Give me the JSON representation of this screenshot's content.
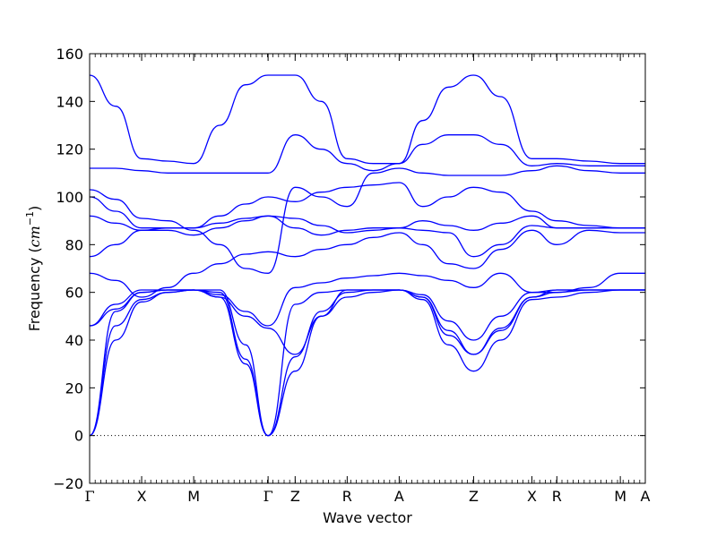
{
  "chart_data": {
    "type": "line",
    "title": "",
    "xlabel": "Wave vector",
    "ylabel": "Frequency",
    "ylabel_unit": "cm",
    "ylabel_exp": "−1",
    "ylim": [
      -20,
      160
    ],
    "yticks": [
      -20,
      0,
      20,
      40,
      60,
      80,
      100,
      120,
      140,
      160
    ],
    "xlim": [
      0,
      10.68
    ],
    "grid": false,
    "zero_line": true,
    "high_symmetry_points": [
      {
        "label": "Γ",
        "x": 0.0
      },
      {
        "label": "X",
        "x": 1.0
      },
      {
        "label": "M",
        "x": 2.0
      },
      {
        "label": "Γ",
        "x": 3.43
      },
      {
        "label": "Z",
        "x": 3.95
      },
      {
        "label": "R",
        "x": 4.95
      },
      {
        "label": "A",
        "x": 5.95
      },
      {
        "label": "Z",
        "x": 7.38
      },
      {
        "label": "X",
        "x": 8.5
      },
      {
        "label": "R",
        "x": 8.98
      },
      {
        "label": "M",
        "x": 10.2
      },
      {
        "label": "A",
        "x": 10.68
      }
    ],
    "series": [
      {
        "x": [
          0,
          0.5,
          1.0,
          1.5,
          2.0,
          2.5,
          3.0,
          3.43,
          3.95,
          4.45,
          4.95,
          5.45,
          5.95,
          6.4,
          6.9,
          7.38,
          7.9,
          8.5,
          8.98,
          9.6,
          10.2,
          10.68
        ],
        "y": [
          0,
          40,
          56,
          60,
          61,
          58,
          30,
          0,
          27,
          50,
          58,
          60,
          61,
          57,
          38,
          27,
          40,
          57,
          58,
          60,
          61,
          61
        ]
      },
      {
        "x": [
          0,
          0.5,
          1.0,
          1.5,
          2.0,
          2.5,
          3.0,
          3.43,
          3.95,
          4.45,
          4.95,
          5.45,
          5.95,
          6.4,
          6.9,
          7.38,
          7.9,
          8.5,
          8.98,
          9.6,
          10.2,
          10.68
        ],
        "y": [
          0,
          46,
          57,
          60,
          61,
          60,
          32,
          0,
          33,
          52,
          60,
          61,
          61,
          58,
          42,
          34,
          45,
          58,
          60,
          61,
          61,
          61
        ]
      },
      {
        "x": [
          0,
          0.5,
          1.0,
          1.5,
          2.0,
          2.5,
          3.0,
          3.43,
          3.95,
          4.45,
          4.95,
          5.45,
          5.95,
          6.4,
          6.9,
          7.38,
          7.9,
          8.5,
          8.98,
          9.6,
          10.2,
          10.68
        ],
        "y": [
          0,
          52,
          60,
          61,
          61,
          61,
          38,
          0,
          55,
          60,
          61,
          61,
          61,
          59,
          48,
          40,
          50,
          60,
          61,
          61,
          61,
          61
        ]
      },
      {
        "x": [
          0,
          0.5,
          1.0,
          1.5,
          2.0,
          2.5,
          3.0,
          3.43,
          3.95,
          4.45,
          4.95,
          5.45,
          5.95,
          6.4,
          6.9,
          7.38,
          7.9,
          8.5,
          8.98,
          9.6,
          10.2,
          10.68
        ],
        "y": [
          46,
          53,
          60,
          61,
          61,
          58,
          50,
          45,
          34,
          50,
          61,
          61,
          61,
          58,
          44,
          34,
          44,
          58,
          61,
          61,
          61,
          61
        ]
      },
      {
        "x": [
          0,
          0.5,
          1.0,
          1.5,
          2.0,
          2.5,
          3.0,
          3.43,
          3.95,
          4.45,
          4.95,
          5.45,
          5.95,
          6.4,
          6.9,
          7.38,
          7.9,
          8.5,
          8.98,
          9.6,
          10.2,
          10.68
        ],
        "y": [
          46,
          55,
          61,
          61,
          61,
          59,
          52,
          46,
          62,
          64,
          66,
          67,
          68,
          67,
          65,
          62,
          68,
          60,
          60,
          62,
          68,
          68
        ]
      },
      {
        "x": [
          0,
          0.5,
          1.0,
          1.5,
          2.0,
          2.5,
          3.0,
          3.43,
          3.95,
          4.45,
          4.95,
          5.45,
          5.95,
          6.4,
          6.9,
          7.38,
          7.9,
          8.5,
          8.98,
          9.6,
          10.2,
          10.68
        ],
        "y": [
          68,
          65,
          58,
          62,
          68,
          72,
          76,
          77,
          75,
          78,
          80,
          83,
          85,
          80,
          72,
          70,
          78,
          86,
          80,
          86,
          85,
          85
        ]
      },
      {
        "x": [
          0,
          0.5,
          1.0,
          1.5,
          2.0,
          2.5,
          3.0,
          3.43,
          3.95,
          4.45,
          4.95,
          5.45,
          5.95,
          6.4,
          6.9,
          7.38,
          7.9,
          8.5,
          8.98,
          9.6,
          10.2,
          10.68
        ],
        "y": [
          75,
          80,
          86,
          86,
          84,
          87,
          90,
          92,
          91,
          88,
          85,
          86,
          87,
          86,
          85,
          75,
          80,
          88,
          87,
          87,
          87,
          87
        ]
      },
      {
        "x": [
          0,
          0.5,
          1.0,
          1.5,
          2.0,
          2.5,
          3.0,
          3.43,
          3.95,
          4.45,
          4.95,
          5.45,
          5.95,
          6.4,
          6.9,
          7.38,
          7.9,
          8.5,
          8.98,
          9.6,
          10.2,
          10.68
        ],
        "y": [
          92,
          89,
          86,
          87,
          87,
          89,
          91,
          92,
          87,
          84,
          86,
          87,
          87,
          90,
          88,
          86,
          89,
          92,
          87,
          87,
          87,
          87
        ]
      },
      {
        "x": [
          0,
          0.5,
          1.0,
          1.5,
          2.0,
          2.5,
          3.0,
          3.43,
          3.95,
          4.45,
          4.95,
          5.45,
          5.95,
          6.4,
          6.9,
          7.38,
          7.9,
          8.5,
          8.98,
          9.6,
          10.2,
          10.68
        ],
        "y": [
          100,
          94,
          87,
          87,
          87,
          92,
          97,
          100,
          98,
          102,
          104,
          105,
          106,
          96,
          100,
          104,
          102,
          94,
          90,
          88,
          87,
          87
        ]
      },
      {
        "x": [
          0,
          0.5,
          1.0,
          1.5,
          2.0,
          2.5,
          3.0,
          3.43,
          3.95,
          4.45,
          4.95,
          5.45,
          5.95,
          6.4,
          6.9,
          7.38,
          7.9,
          8.5,
          8.98,
          9.6,
          10.2,
          10.68
        ],
        "y": [
          103,
          99,
          91,
          90,
          86,
          80,
          70,
          68,
          104,
          100,
          96,
          110,
          112,
          110,
          109,
          109,
          109,
          111,
          113,
          111,
          110,
          110
        ]
      },
      {
        "x": [
          0,
          0.5,
          1.0,
          1.5,
          2.0,
          2.5,
          3.0,
          3.43,
          3.95,
          4.45,
          4.95,
          5.45,
          5.95,
          6.4,
          6.9,
          7.38,
          7.9,
          8.5,
          8.98,
          9.6,
          10.2,
          10.68
        ],
        "y": [
          112,
          112,
          111,
          110,
          110,
          110,
          110,
          110,
          126,
          120,
          114,
          111,
          114,
          122,
          126,
          126,
          122,
          113,
          114,
          113,
          113,
          113
        ]
      },
      {
        "x": [
          0,
          0.5,
          1.0,
          1.5,
          2.0,
          2.5,
          3.0,
          3.43,
          3.95,
          4.45,
          4.95,
          5.45,
          5.95,
          6.4,
          6.9,
          7.38,
          7.9,
          8.5,
          8.98,
          9.6,
          10.2,
          10.68
        ],
        "y": [
          151,
          138,
          116,
          115,
          114,
          130,
          147,
          151,
          151,
          140,
          116,
          114,
          114,
          132,
          146,
          151,
          142,
          116,
          116,
          115,
          114,
          114
        ]
      }
    ]
  }
}
